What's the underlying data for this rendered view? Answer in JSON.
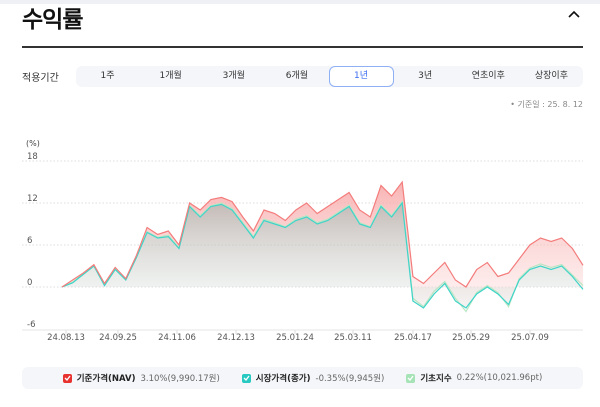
{
  "header": {
    "title": "수익률",
    "collapse_icon": "chevron-up-icon"
  },
  "period": {
    "label": "적용기간",
    "tabs": [
      {
        "label": "1주",
        "active": false
      },
      {
        "label": "1개월",
        "active": false
      },
      {
        "label": "3개월",
        "active": false
      },
      {
        "label": "6개월",
        "active": false
      },
      {
        "label": "1년",
        "active": true
      },
      {
        "label": "3년",
        "active": false
      },
      {
        "label": "연초이후",
        "active": false
      },
      {
        "label": "상장이후",
        "active": false
      }
    ]
  },
  "base_date": "• 기준일 : 25. 8. 12",
  "legend": [
    {
      "name": "기준가격(NAV)",
      "value": "3.10%(9,990.17원)",
      "color": "#e8322f",
      "checked": true
    },
    {
      "name": "시장가격(종가)",
      "value": "-0.35%(9,945원)",
      "color": "#27c9c0",
      "checked": true
    },
    {
      "name": "기초지수",
      "value": "0.22%(10,021.96pt)",
      "color": "#a6e3b6",
      "checked": true
    }
  ],
  "colors": {
    "nav": "#f47c7c",
    "market": "#3fd4c8",
    "index": "#b9e6c4",
    "active_tab": "#3b6cf0"
  },
  "chart_data": {
    "type": "line",
    "title": "수익률",
    "ylabel": "(%)",
    "xlabel": "",
    "ylim": [
      -6,
      18
    ],
    "yticks": [
      "18",
      "12",
      "6",
      "0",
      "-6"
    ],
    "xticks": [
      "24.08.13",
      "24.09.25",
      "24.11.06",
      "24.12.13",
      "25.01.24",
      "25.03.11",
      "25.04.17",
      "25.05.29",
      "25.07.09"
    ],
    "grid": true,
    "legend_position": "bottom",
    "x": [
      "24.08.13",
      "24.08.20",
      "24.08.27",
      "24.09.03",
      "24.09.10",
      "24.09.17",
      "24.09.25",
      "24.10.02",
      "24.10.09",
      "24.10.16",
      "24.10.23",
      "24.10.30",
      "24.11.06",
      "24.11.13",
      "24.11.20",
      "24.11.27",
      "24.12.04",
      "24.12.13",
      "24.12.20",
      "24.12.27",
      "25.01.06",
      "25.01.13",
      "25.01.24",
      "25.02.03",
      "25.02.10",
      "25.02.17",
      "25.02.24",
      "25.03.04",
      "25.03.11",
      "25.03.18",
      "25.03.25",
      "25.04.01",
      "25.04.08",
      "25.04.17",
      "25.04.24",
      "25.05.01",
      "25.05.08",
      "25.05.15",
      "25.05.29",
      "25.06.05",
      "25.06.12",
      "25.06.19",
      "25.06.26",
      "25.07.03",
      "25.07.09",
      "25.07.16",
      "25.07.23",
      "25.07.30",
      "25.08.06",
      "25.08.12"
    ],
    "series": [
      {
        "name": "기준가격(NAV)",
        "values": [
          0.0,
          1.0,
          2.0,
          3.2,
          0.5,
          2.8,
          1.2,
          4.5,
          8.5,
          7.5,
          8.0,
          6.0,
          12.0,
          11.0,
          12.5,
          12.8,
          12.2,
          10.0,
          8.0,
          11.0,
          10.5,
          9.5,
          11.0,
          12.0,
          10.5,
          11.5,
          12.5,
          13.5,
          11.0,
          10.0,
          14.5,
          13.0,
          15.0,
          1.5,
          0.5,
          2.0,
          3.5,
          1.0,
          0.0,
          2.5,
          3.5,
          1.5,
          2.0,
          4.0,
          6.0,
          7.0,
          6.5,
          7.0,
          5.5,
          3.1
        ]
      },
      {
        "name": "시장가격(종가)",
        "values": [
          0.0,
          0.6,
          1.8,
          3.0,
          0.2,
          2.5,
          1.0,
          4.2,
          7.8,
          7.0,
          7.2,
          5.5,
          11.5,
          10.0,
          11.5,
          11.8,
          11.0,
          9.0,
          7.0,
          9.5,
          9.0,
          8.5,
          9.5,
          10.0,
          9.0,
          9.5,
          10.5,
          11.5,
          9.0,
          8.5,
          11.5,
          10.0,
          12.0,
          -2.0,
          -3.0,
          -1.0,
          0.5,
          -2.0,
          -3.0,
          -1.0,
          0.0,
          -1.0,
          -2.5,
          1.0,
          2.5,
          3.0,
          2.5,
          3.0,
          1.5,
          -0.35
        ]
      },
      {
        "name": "기초지수",
        "values": [
          0.0,
          0.7,
          1.9,
          3.0,
          0.3,
          2.6,
          1.1,
          4.3,
          7.9,
          7.1,
          7.4,
          5.6,
          11.6,
          10.2,
          11.6,
          12.0,
          11.2,
          9.2,
          7.2,
          9.7,
          9.2,
          8.6,
          9.7,
          10.2,
          9.2,
          9.7,
          10.7,
          11.7,
          9.2,
          8.6,
          11.7,
          10.2,
          12.2,
          -1.6,
          -2.8,
          -0.6,
          0.8,
          -1.6,
          -3.5,
          -0.8,
          0.2,
          -0.8,
          -2.8,
          1.2,
          2.7,
          3.3,
          2.8,
          3.2,
          1.7,
          0.22
        ]
      }
    ]
  }
}
